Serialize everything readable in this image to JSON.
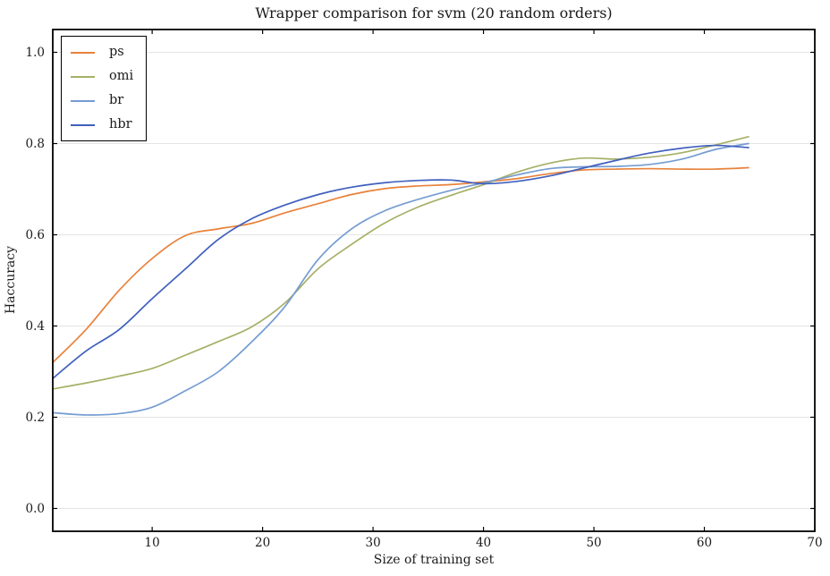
{
  "figure_title": "Wrapper comparison for svm (20 random orders)",
  "chart_data": {
    "type": "line",
    "title": "Wrapper comparison for svm (20 random orders)",
    "xlabel": "Size of training set",
    "ylabel": "Haccuracy",
    "xlim": [
      1,
      70
    ],
    "ylim": [
      -0.05,
      1.05
    ],
    "x_ticks": [
      10,
      20,
      30,
      40,
      50,
      60,
      70
    ],
    "y_ticks": [
      0.0,
      0.2,
      0.4,
      0.6,
      0.8,
      1.0
    ],
    "grid": "horizontal gridlines only",
    "legend_position": "upper left",
    "x": [
      1,
      4,
      7,
      10,
      13,
      16,
      19,
      22,
      25,
      28,
      31,
      34,
      37,
      40,
      43,
      46,
      49,
      52,
      55,
      58,
      61,
      64
    ],
    "series": [
      {
        "name": "ps",
        "color": "#E8823B",
        "values": [
          0.32,
          0.392,
          0.478,
          0.548,
          0.598,
          0.613,
          0.625,
          0.648,
          0.668,
          0.688,
          0.701,
          0.707,
          0.71,
          0.716,
          0.723,
          0.734,
          0.742,
          0.744,
          0.745,
          0.744,
          0.744,
          0.747
        ]
      },
      {
        "name": "omi",
        "color": "#A6B066",
        "values": [
          0.262,
          0.275,
          0.29,
          0.307,
          0.336,
          0.366,
          0.398,
          0.45,
          0.525,
          0.578,
          0.625,
          0.66,
          0.686,
          0.71,
          0.737,
          0.757,
          0.768,
          0.766,
          0.77,
          0.78,
          0.797,
          0.815
        ]
      },
      {
        "name": "br",
        "color": "#759CD2",
        "values": [
          0.21,
          0.205,
          0.208,
          0.222,
          0.258,
          0.3,
          0.365,
          0.442,
          0.545,
          0.612,
          0.652,
          0.677,
          0.697,
          0.714,
          0.731,
          0.745,
          0.749,
          0.75,
          0.754,
          0.766,
          0.787,
          0.8
        ]
      },
      {
        "name": "hbr",
        "color": "#4060BE",
        "values": [
          0.285,
          0.345,
          0.392,
          0.46,
          0.525,
          0.59,
          0.635,
          0.665,
          0.688,
          0.704,
          0.714,
          0.719,
          0.72,
          0.712,
          0.717,
          0.729,
          0.746,
          0.763,
          0.779,
          0.79,
          0.796,
          0.791
        ]
      }
    ],
    "colors": {
      "background": "#FFFFFF",
      "frame": "#000000",
      "grid": "#E4E4E4",
      "text": "#1A1A1A"
    }
  }
}
